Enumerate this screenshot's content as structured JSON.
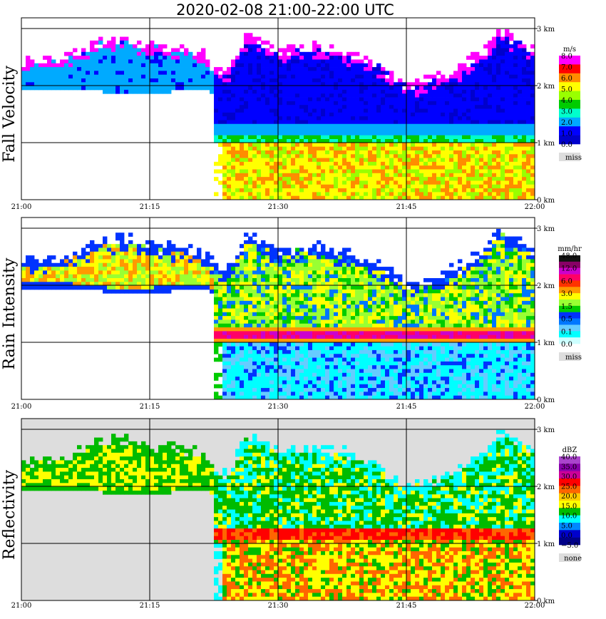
{
  "page_title": "2020-02-08   21:00-22:00 UTC",
  "chart_data": [
    {
      "type": "heatmap",
      "ylabel": "Fall Velocity",
      "x_range": [
        "21:00",
        "22:00"
      ],
      "x_ticks": [
        "21:00",
        "21:15",
        "21:30",
        "21:45",
        "22:00"
      ],
      "y_range_km": [
        0,
        3
      ],
      "y_ticks": [
        "0 km",
        "1 km",
        "2 km",
        "3 km"
      ],
      "grid": true,
      "colorbar": {
        "unit": "m/s",
        "labels": [
          "8.0",
          "7.0",
          "6.0",
          "5.0",
          "4.0",
          "3.0",
          "2.0",
          "1.0",
          "0.0"
        ],
        "colors": [
          "#ff00ff",
          "#ff0000",
          "#ff8c00",
          "#ffff00",
          "#99ff00",
          "#00cc00",
          "#00ffcc",
          "#00aaff",
          "#0000ff",
          "#0000cc"
        ],
        "missing_label": "miss",
        "missing_color": "#dddddd"
      },
      "background_color": "#ffffff"
    },
    {
      "type": "heatmap",
      "ylabel": "Rain Intensity",
      "x_range": [
        "21:00",
        "22:00"
      ],
      "x_ticks": [
        "21:00",
        "21:15",
        "21:30",
        "21:45",
        "22:00"
      ],
      "y_range_km": [
        0,
        3
      ],
      "y_ticks": [
        "0 km",
        "1 km",
        "2 km",
        "3 km"
      ],
      "grid": true,
      "colorbar": {
        "unit": "mm/hr",
        "labels": [
          "48.0",
          "12.0",
          "6.0",
          "3.0",
          "1.5",
          "0.5",
          "0.1",
          "0.0"
        ],
        "colors": [
          "#111111",
          "#880066",
          "#cc00cc",
          "#ff0066",
          "#ff3300",
          "#ff9900",
          "#ffff00",
          "#99ff33",
          "#00cc00",
          "#0033ff",
          "#0077ff",
          "#66ccff",
          "#00ffff",
          "#ccffff"
        ],
        "missing_label": "miss",
        "missing_color": "#dddddd"
      },
      "background_color": "#ffffff"
    },
    {
      "type": "heatmap",
      "ylabel": "Reflectivity",
      "x_range": [
        "21:00",
        "22:00"
      ],
      "x_ticks": [
        "21:00",
        "21:15",
        "21:30",
        "21:45",
        "22:00"
      ],
      "y_range_km": [
        0,
        3
      ],
      "y_ticks": [
        "0 km",
        "1 km",
        "2 km",
        "3 km"
      ],
      "grid": true,
      "colorbar": {
        "unit": "dBZ",
        "labels": [
          "40.0",
          "35.0",
          "30.0",
          "25.0",
          "20.0",
          "15.0",
          "10.0",
          "5.0",
          "0.0",
          "−5.0"
        ],
        "colors": [
          "#aa44cc",
          "#8800aa",
          "#cc0099",
          "#ff0000",
          "#ff6600",
          "#ffcc00",
          "#ffff00",
          "#00bb00",
          "#00ffff",
          "#0088ff",
          "#0000cc",
          "#000088"
        ],
        "missing_label": "none",
        "missing_color": "#dddddd"
      },
      "background_color": "#dddddd"
    }
  ]
}
